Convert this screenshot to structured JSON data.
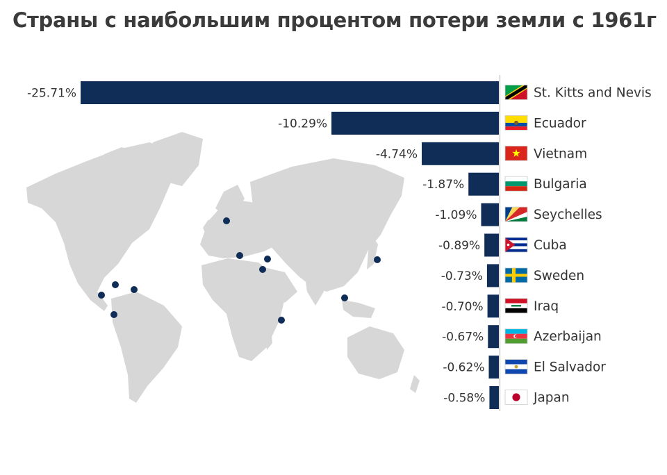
{
  "title": "Страны с наибольшим процентом потери земли с 1961г",
  "colors": {
    "bar": "#0f2d57",
    "marker": "#0f2d57",
    "map": "#d7d7d7",
    "divider": "#bbbbbb",
    "text": "#333333"
  },
  "chart_data": {
    "type": "bar",
    "orientation": "horizontal",
    "title": "Страны с наибольшим процентом потери земли с 1961г",
    "categories": [
      "St. Kitts and Nevis",
      "Ecuador",
      "Vietnam",
      "Bulgaria",
      "Seychelles",
      "Cuba",
      "Sweden",
      "Iraq",
      "Azerbaijan",
      "El Salvador",
      "Japan"
    ],
    "values": [
      -25.71,
      -10.29,
      -4.74,
      -1.87,
      -1.09,
      -0.89,
      -0.73,
      -0.7,
      -0.67,
      -0.62,
      -0.58
    ],
    "labels": [
      "-25.71%",
      "-10.29%",
      "-4.74%",
      "-1.87%",
      "-1.09%",
      "-0.89%",
      "-0.73%",
      "-0.70%",
      "-0.67%",
      "-0.62%",
      "-0.58%"
    ],
    "unit": "%",
    "xlim": [
      -25.71,
      0
    ],
    "flag_icons": [
      "st-kitts-and-nevis-flag-icon",
      "ecuador-flag-icon",
      "vietnam-flag-icon",
      "bulgaria-flag-icon",
      "seychelles-flag-icon",
      "cuba-flag-icon",
      "sweden-flag-icon",
      "iraq-flag-icon",
      "azerbaijan-flag-icon",
      "el-salvador-flag-icon",
      "japan-flag-icon"
    ]
  }
}
